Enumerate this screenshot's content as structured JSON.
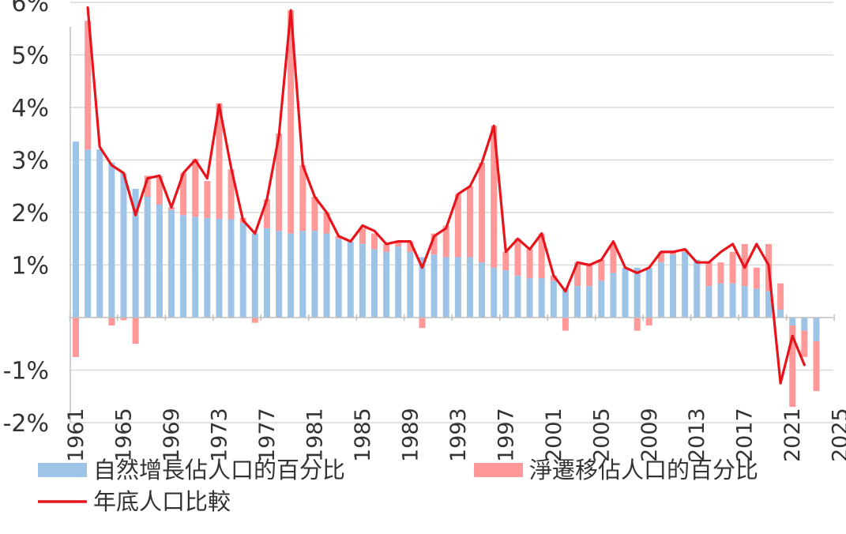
{
  "chart_data": {
    "type": "bar",
    "x_start": 1961,
    "x_end": 2025,
    "years": [
      1961,
      1962,
      1963,
      1964,
      1965,
      1966,
      1967,
      1968,
      1969,
      1970,
      1971,
      1972,
      1973,
      1974,
      1975,
      1976,
      1977,
      1978,
      1979,
      1980,
      1981,
      1982,
      1983,
      1984,
      1985,
      1986,
      1987,
      1988,
      1989,
      1990,
      1991,
      1992,
      1993,
      1994,
      1995,
      1996,
      1997,
      1998,
      1999,
      2000,
      2001,
      2002,
      2003,
      2004,
      2005,
      2006,
      2007,
      2008,
      2009,
      2010,
      2011,
      2012,
      2013,
      2014,
      2015,
      2016,
      2017,
      2018,
      2019,
      2020,
      2021,
      2022,
      2023
    ],
    "series": [
      {
        "name": "自然增長佔人口的百分比",
        "kind": "bar",
        "color": "#9dc3e6",
        "values": [
          3.35,
          3.2,
          3.2,
          2.95,
          2.75,
          2.45,
          2.3,
          2.15,
          2.05,
          1.95,
          1.92,
          1.9,
          1.88,
          1.87,
          1.8,
          1.6,
          1.7,
          1.65,
          1.6,
          1.65,
          1.65,
          1.6,
          1.5,
          1.45,
          1.4,
          1.3,
          1.25,
          1.35,
          1.25,
          1.15,
          1.2,
          1.15,
          1.15,
          1.15,
          1.05,
          0.95,
          0.9,
          0.8,
          0.75,
          0.75,
          0.7,
          0.55,
          0.6,
          0.6,
          0.7,
          0.85,
          0.95,
          0.95,
          0.95,
          1.05,
          1.2,
          1.25,
          1.1,
          0.6,
          0.65,
          0.65,
          0.6,
          0.55,
          0.5,
          0.15,
          -0.15,
          -0.25,
          -0.45
        ]
      },
      {
        "name": "淨遷移佔人口的百分比",
        "kind": "bar",
        "color": "#ff9999",
        "values": [
          -0.75,
          2.45,
          0.0,
          -0.15,
          -0.05,
          -0.5,
          0.4,
          0.55,
          0.05,
          0.8,
          1.1,
          0.7,
          2.2,
          0.95,
          0.1,
          -0.1,
          0.55,
          1.85,
          4.25,
          1.25,
          0.65,
          0.4,
          0.05,
          0.0,
          0.3,
          0.3,
          0.15,
          0.1,
          0.2,
          -0.2,
          0.4,
          0.6,
          1.2,
          1.35,
          1.9,
          2.7,
          0.35,
          0.7,
          0.55,
          0.85,
          0.1,
          -0.25,
          0.45,
          0.4,
          0.4,
          0.55,
          0.0,
          -0.25,
          -0.15,
          0.2,
          0.05,
          0.05,
          0.0,
          0.45,
          0.4,
          0.6,
          0.8,
          0.4,
          0.9,
          0.5,
          -1.55,
          -0.5,
          -0.95
        ]
      },
      {
        "name": "年底人口比較",
        "kind": "line",
        "color": "#e8141c",
        "values": [
          null,
          5.9,
          3.25,
          2.9,
          2.75,
          1.95,
          2.65,
          2.7,
          2.1,
          2.75,
          3.0,
          2.65,
          4.05,
          2.85,
          1.85,
          1.6,
          2.25,
          3.45,
          5.85,
          2.9,
          2.3,
          2.0,
          1.55,
          1.45,
          1.75,
          1.65,
          1.4,
          1.45,
          1.45,
          0.95,
          1.55,
          1.7,
          2.35,
          2.5,
          2.95,
          3.65,
          1.25,
          1.5,
          1.3,
          1.6,
          0.8,
          0.5,
          1.05,
          1.0,
          1.1,
          1.45,
          0.95,
          0.85,
          0.95,
          1.25,
          1.25,
          1.3,
          1.05,
          1.05,
          1.25,
          1.4,
          0.95,
          1.4,
          1.0,
          -1.25,
          -0.35,
          -0.9,
          null
        ]
      }
    ],
    "ylim": [
      -2,
      6
    ],
    "ytick_labels": [
      "6%",
      "5%",
      "4%",
      "3%",
      "2%",
      "1%",
      "-1%",
      "-2%"
    ],
    "ytick_values": [
      6,
      5,
      4,
      3,
      2,
      1,
      -1,
      -2
    ],
    "xtick_labels": [
      "1961",
      "1965",
      "1969",
      "1973",
      "1977",
      "1981",
      "1985",
      "1989",
      "1993",
      "1997",
      "2001",
      "2005",
      "2009",
      "2013",
      "2017",
      "2021",
      "2025"
    ],
    "grid": true,
    "legend_position": "bottom",
    "title": "",
    "xlabel": "",
    "ylabel": ""
  }
}
